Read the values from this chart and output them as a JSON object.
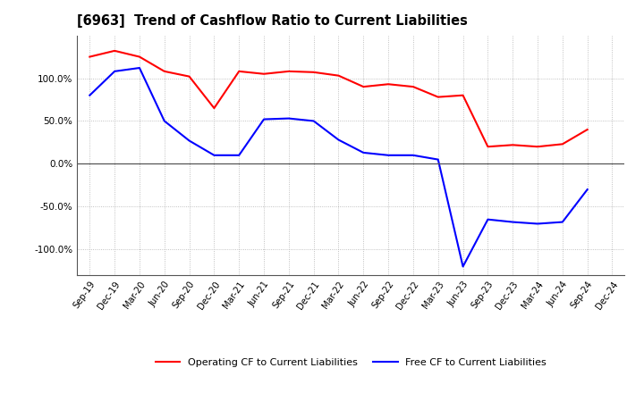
{
  "title": "[6963]  Trend of Cashflow Ratio to Current Liabilities",
  "x_labels": [
    "Sep-19",
    "Dec-19",
    "Mar-20",
    "Jun-20",
    "Sep-20",
    "Dec-20",
    "Mar-21",
    "Jun-21",
    "Sep-21",
    "Dec-21",
    "Mar-22",
    "Jun-22",
    "Sep-22",
    "Dec-22",
    "Mar-23",
    "Jun-23",
    "Sep-23",
    "Dec-23",
    "Mar-24",
    "Jun-24",
    "Sep-24",
    "Dec-24"
  ],
  "operating_cf": [
    125,
    132,
    125,
    108,
    102,
    65,
    108,
    105,
    108,
    107,
    103,
    90,
    93,
    90,
    78,
    80,
    20,
    22,
    20,
    23,
    40,
    null
  ],
  "free_cf": [
    80,
    108,
    112,
    50,
    27,
    10,
    10,
    52,
    53,
    50,
    28,
    13,
    10,
    10,
    5,
    -120,
    -65,
    -68,
    -70,
    -68,
    -30,
    null
  ],
  "operating_color": "#ff0000",
  "free_color": "#0000ff",
  "bg_color": "#ffffff",
  "plot_bg_color": "#ffffff",
  "grid_color": "#b0b0b0",
  "ylim": [
    -130,
    150
  ],
  "yticks": [
    -100,
    -50,
    0,
    50,
    100
  ],
  "legend_labels": [
    "Operating CF to Current Liabilities",
    "Free CF to Current Liabilities"
  ]
}
